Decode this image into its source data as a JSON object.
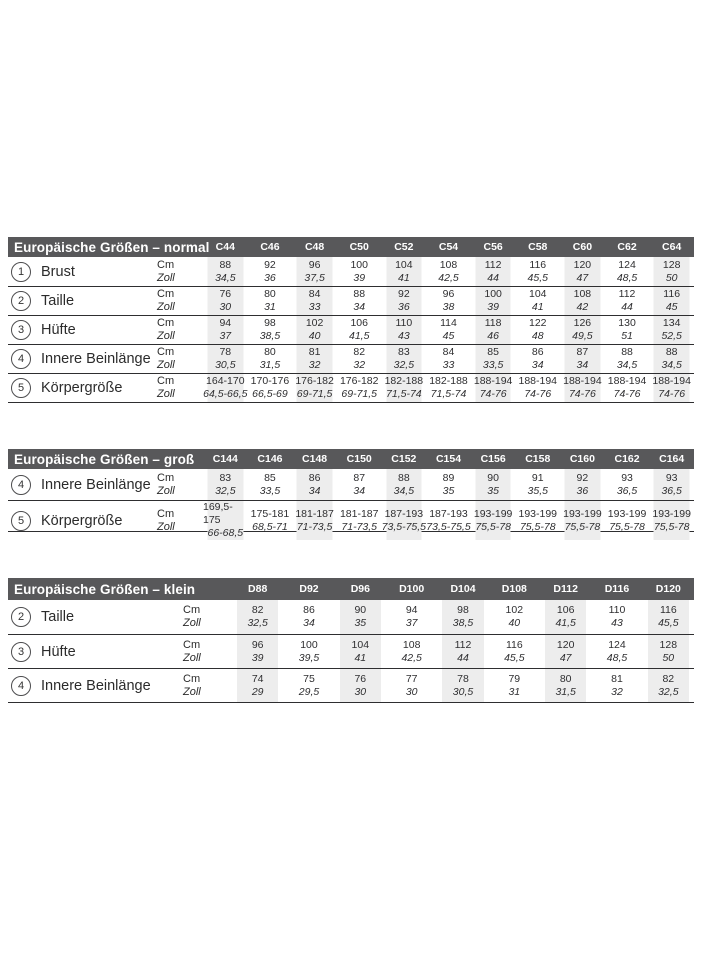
{
  "colors": {
    "header_bg": "#58585a",
    "header_text": "#ffffff",
    "band_bg": "#ededed",
    "line": "#2e2e30",
    "page_bg": "#ffffff"
  },
  "tables": [
    {
      "title": "Europäische Größen – normal",
      "unit_cm": "Cm",
      "unit_zoll": "Zoll",
      "columns": [
        "C44",
        "C46",
        "C48",
        "C50",
        "C52",
        "C54",
        "C56",
        "C58",
        "C60",
        "C62",
        "C64"
      ],
      "rows": [
        {
          "num": "1",
          "label": "Brust",
          "cm": [
            "88",
            "92",
            "96",
            "100",
            "104",
            "108",
            "112",
            "116",
            "120",
            "124",
            "128"
          ],
          "zoll": [
            "34,5",
            "36",
            "37,5",
            "39",
            "41",
            "42,5",
            "44",
            "45,5",
            "47",
            "48,5",
            "50"
          ]
        },
        {
          "num": "2",
          "label": "Taille",
          "cm": [
            "76",
            "80",
            "84",
            "88",
            "92",
            "96",
            "100",
            "104",
            "108",
            "112",
            "116"
          ],
          "zoll": [
            "30",
            "31",
            "33",
            "34",
            "36",
            "38",
            "39",
            "41",
            "42",
            "44",
            "45"
          ]
        },
        {
          "num": "3",
          "label": "Hüfte",
          "cm": [
            "94",
            "98",
            "102",
            "106",
            "110",
            "114",
            "118",
            "122",
            "126",
            "130",
            "134"
          ],
          "zoll": [
            "37",
            "38,5",
            "40",
            "41,5",
            "43",
            "45",
            "46",
            "48",
            "49,5",
            "51",
            "52,5"
          ]
        },
        {
          "num": "4",
          "label": "Innere Beinlänge",
          "cm": [
            "78",
            "80",
            "81",
            "82",
            "83",
            "84",
            "85",
            "86",
            "87",
            "88",
            "88"
          ],
          "zoll": [
            "30,5",
            "31,5",
            "32",
            "32",
            "32,5",
            "33",
            "33,5",
            "34",
            "34",
            "34,5",
            "34,5"
          ]
        },
        {
          "num": "5",
          "label": "Körpergröße",
          "cm": [
            "164-170",
            "170-176",
            "176-182",
            "176-182",
            "182-188",
            "182-188",
            "188-194",
            "188-194",
            "188-194",
            "188-194",
            "188-194"
          ],
          "zoll": [
            "64,5-66,5",
            "66,5-69",
            "69-71,5",
            "69-71,5",
            "71,5-74",
            "71,5-74",
            "74-76",
            "74-76",
            "74-76",
            "74-76",
            "74-76"
          ]
        }
      ]
    },
    {
      "title": "Europäische Größen – groß",
      "unit_cm": "Cm",
      "unit_zoll": "Zoll",
      "columns": [
        "C144",
        "C146",
        "C148",
        "C150",
        "C152",
        "C154",
        "C156",
        "C158",
        "C160",
        "C162",
        "C164"
      ],
      "rows": [
        {
          "num": "4",
          "label": "Innere Beinlänge",
          "cm": [
            "83",
            "85",
            "86",
            "87",
            "88",
            "89",
            "90",
            "91",
            "92",
            "93",
            "93"
          ],
          "zoll": [
            "32,5",
            "33,5",
            "34",
            "34",
            "34,5",
            "35",
            "35",
            "35,5",
            "36",
            "36,5",
            "36,5"
          ]
        },
        {
          "num": "5",
          "label": "Körpergröße",
          "cm": [
            "169,5-175",
            "175-181",
            "181-187",
            "181-187",
            "187-193",
            "187-193",
            "193-199",
            "193-199",
            "193-199",
            "193-199",
            "193-199"
          ],
          "zoll": [
            "66-68,5",
            "68,5-71",
            "71-73,5",
            "71-73,5",
            "73,5-75,5",
            "73,5-75,5",
            "75,5-78",
            "75,5-78",
            "75,5-78",
            "75,5-78",
            "75,5-78"
          ]
        }
      ]
    },
    {
      "title": "Europäische Größen – klein",
      "unit_cm": "Cm",
      "unit_zoll": "Zoll",
      "columns": [
        "D88",
        "D92",
        "D96",
        "D100",
        "D104",
        "D108",
        "D112",
        "D116",
        "D120"
      ],
      "rows": [
        {
          "num": "2",
          "label": "Taille",
          "cm": [
            "82",
            "86",
            "90",
            "94",
            "98",
            "102",
            "106",
            "110",
            "116"
          ],
          "zoll": [
            "32,5",
            "34",
            "35",
            "37",
            "38,5",
            "40",
            "41,5",
            "43",
            "45,5"
          ]
        },
        {
          "num": "3",
          "label": "Hüfte",
          "cm": [
            "96",
            "100",
            "104",
            "108",
            "112",
            "116",
            "120",
            "124",
            "128"
          ],
          "zoll": [
            "39",
            "39,5",
            "41",
            "42,5",
            "44",
            "45,5",
            "47",
            "48,5",
            "50"
          ]
        },
        {
          "num": "4",
          "label": "Innere Beinlänge",
          "cm": [
            "74",
            "75",
            "76",
            "77",
            "78",
            "79",
            "80",
            "81",
            "82"
          ],
          "zoll": [
            "29",
            "29,5",
            "30",
            "30",
            "30,5",
            "31",
            "31,5",
            "32",
            "32,5"
          ]
        }
      ]
    }
  ]
}
